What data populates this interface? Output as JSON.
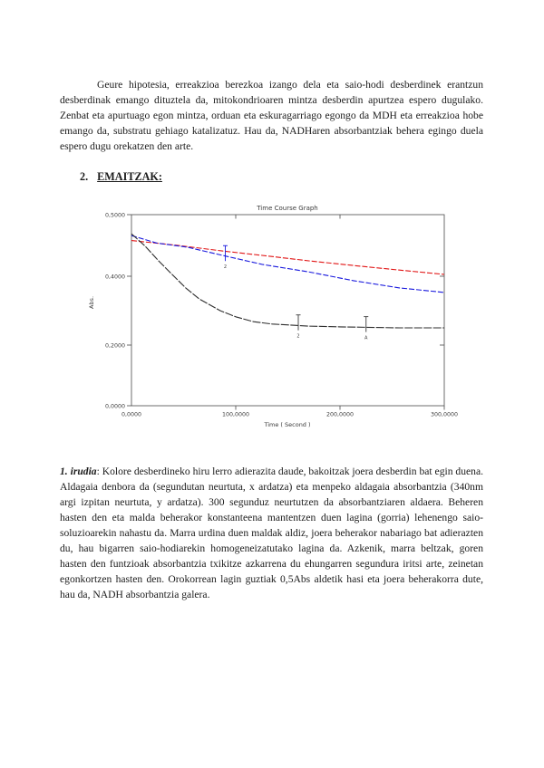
{
  "doc": {
    "paragraph_hypothesis": "Geure hipotesia, erreakzioa berezkoa izango dela eta saio-hodi desberdinek erantzun desberdinak emango dituztela da, mitokondrioaren mintza desberdin apurtzea espero dugulako. Zenbat eta apurtuago egon mintza, orduan eta eskuragarriago egongo da MDH eta erreakzioa hobe emango da, substratu gehiago katalizatuz. Hau da, NADHaren absorbantziak behera egingo duela espero dugu orekatzen den arte.",
    "heading": {
      "number": "2.",
      "label": "EMAITZAK:"
    },
    "figure_caption": {
      "label": "1. irudia",
      "text": ": Kolore desberdineko hiru lerro adierazita daude, bakoitzak joera desberdin bat egin duena. Aldagaia denbora da (segundutan neurtuta, x ardatza) eta menpeko aldagaia absorbantzia (340nm argi izpitan neurtuta, y ardatza). 300 segunduz neurtutzen da absorbantziaren aldaera. Beheren hasten den eta malda beherakor konstanteena mantentzen duen lagina (gorria) lehenengo saio-soluzioarekin nahastu da. Marra urdina duen maldak aldiz, joera beherakor nabariago bat adierazten du, hau bigarren saio-hodiarekin homogeneizatutako lagina da. Azkenik, marra beltzak, goren hasten den funtzioak absorbantzia txikitze azkarrena du ehungarren segundura iritsi arte, zeinetan egonkortzen hasten den. Orokorrean lagin guztiak 0,5Abs aldetik hasi eta joera beherakorra dute, hau da, NADH absorbantzia galera."
    }
  },
  "chart_data": {
    "type": "line",
    "title": "Time Course Graph",
    "xlabel": "Time ( Second )",
    "ylabel": "Abs.",
    "xlim": [
      0,
      300
    ],
    "ylim": [
      0,
      0.5
    ],
    "grid": false,
    "legend": "none",
    "x_tick_labels": [
      "0,0000",
      "100,0000",
      "200,0000",
      "300,0000"
    ],
    "x_tick_values": [
      0,
      100,
      200,
      300
    ],
    "y_tick_labels": [
      "0,5000",
      "0,4000",
      "0,2000",
      "0,0000"
    ],
    "y_tick_values": [
      0.5,
      0.4,
      0.2,
      0.0
    ],
    "series": [
      {
        "name": "red-line-sample-1",
        "color": "#e11414",
        "x": [
          0,
          45,
          87,
          130,
          170,
          215,
          257,
          300
        ],
        "values": [
          0.458,
          0.45,
          0.441,
          0.433,
          0.425,
          0.417,
          0.41,
          0.403
        ]
      },
      {
        "name": "blue-line-sample-2",
        "color": "#1717dd",
        "x": [
          0,
          24,
          54,
          87,
          126,
          170,
          213,
          257,
          300
        ],
        "values": [
          0.466,
          0.454,
          0.447,
          0.434,
          0.419,
          0.407,
          0.387,
          0.366,
          0.353
        ]
      },
      {
        "name": "black-line-sample-3",
        "color": "#2d2d2d",
        "x": [
          0,
          13,
          26,
          39,
          52,
          65,
          85,
          100,
          117,
          135,
          170,
          200,
          257,
          300
        ],
        "values": [
          0.469,
          0.449,
          0.425,
          0.403,
          0.366,
          0.334,
          0.3,
          0.282,
          0.268,
          0.261,
          0.255,
          0.253,
          0.25,
          0.25
        ]
      }
    ],
    "event_markers": [
      {
        "series": "blue-line-sample-2",
        "x": 90,
        "y": 0.432,
        "label": "2",
        "color": "#1717dd"
      },
      {
        "series": "black-line-sample-3",
        "x": 160,
        "y": 0.256,
        "label": "2",
        "color": "#3a3a3a"
      },
      {
        "series": "black-line-sample-3",
        "x": 225,
        "y": 0.251,
        "label": "A",
        "color": "#3a3a3a"
      }
    ]
  }
}
